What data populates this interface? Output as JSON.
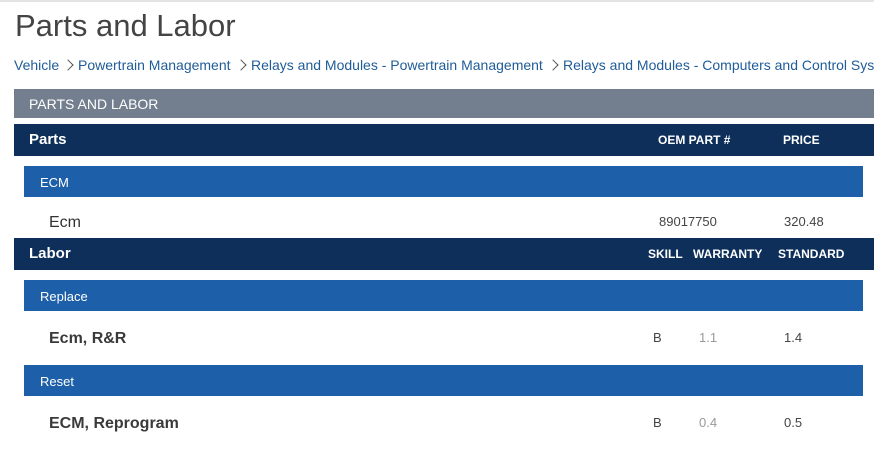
{
  "header": {
    "title": "Parts and Labor"
  },
  "breadcrumb": [
    "Vehicle",
    "Powertrain Management",
    "Relays and Modules - Powertrain Management",
    "Relays and Modules - Computers and Control Sys"
  ],
  "section": {
    "title": "PARTS AND LABOR"
  },
  "parts": {
    "title": "Parts",
    "columns": [
      "OEM PART #",
      "PRICE"
    ],
    "groups": [
      {
        "name": "ECM",
        "rows": [
          {
            "name": "Ecm",
            "part": "89017750",
            "price": "320.48"
          }
        ]
      }
    ]
  },
  "labor": {
    "title": "Labor",
    "columns": [
      "SKILL",
      "WARRANTY",
      "STANDARD"
    ],
    "groups": [
      {
        "name": "Replace",
        "rows": [
          {
            "name": "Ecm, R&R",
            "skill": "B",
            "warranty": "1.1",
            "standard": "1.4"
          }
        ]
      },
      {
        "name": "Reset",
        "rows": [
          {
            "name": "ECM, Reprogram",
            "skill": "B",
            "warranty": "0.4",
            "standard": "0.5"
          }
        ]
      }
    ]
  }
}
